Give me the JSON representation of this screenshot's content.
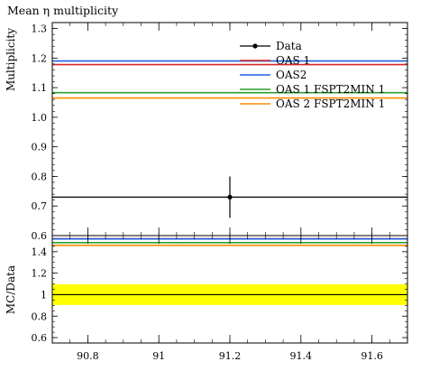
{
  "chart_data": [
    {
      "type": "line",
      "panel": "main",
      "title": "Mean η multiplicity",
      "ylabel": "Multiplicity",
      "xlim": [
        90.7,
        91.7
      ],
      "ylim": [
        0.6,
        1.32
      ],
      "yticks": [
        0.6,
        0.7,
        0.8,
        0.9,
        1.0,
        1.1,
        1.2,
        1.3
      ],
      "ytick_labels": [
        "0.6",
        "0.7",
        "0.8",
        "0.9",
        "1.0",
        "1.1",
        "1.2",
        "1.3"
      ],
      "legend_position": "top-right",
      "data": {
        "name": "Data",
        "x": 91.2,
        "y": 0.73,
        "yerr": 0.07,
        "color": "#000000"
      },
      "series": [
        {
          "name": "OAS 1",
          "y": 1.178,
          "color": "#d62728"
        },
        {
          "name": "OAS2",
          "y": 1.19,
          "color": "#1f5fe0"
        },
        {
          "name": "OAS 1 FSPT2MIN 1",
          "y": 1.083,
          "color": "#2ca02c"
        },
        {
          "name": "OAS 2 FSPT2MIN 1",
          "y": 1.065,
          "color": "#ff8c00"
        }
      ]
    },
    {
      "type": "line",
      "panel": "ratio",
      "ylabel": "MC/Data",
      "xlim": [
        90.7,
        91.7
      ],
      "ylim": [
        0.55,
        1.55
      ],
      "xticks": [
        90.8,
        91.0,
        91.2,
        91.4,
        91.6
      ],
      "xtick_labels": [
        "90.8",
        "91",
        "91.2",
        "91.4",
        "91.6"
      ],
      "yticks": [
        0.6,
        0.8,
        1.0,
        1.2,
        1.4
      ],
      "ytick_labels": [
        "0.6",
        "0.8",
        "1",
        "1.2",
        "1.4"
      ],
      "band": {
        "low": 0.904,
        "high": 1.096,
        "color": "#ffff00"
      },
      "series": [
        {
          "name": "OAS 1",
          "y": 1.614,
          "color": "#d62728"
        },
        {
          "name": "OAS2",
          "y": 1.63,
          "color": "#1f5fe0"
        },
        {
          "name": "OAS 1 FSPT2MIN 1",
          "y": 1.484,
          "color": "#2ca02c"
        },
        {
          "name": "OAS 2 FSPT2MIN 1",
          "y": 1.459,
          "color": "#ff8c00"
        }
      ]
    }
  ]
}
